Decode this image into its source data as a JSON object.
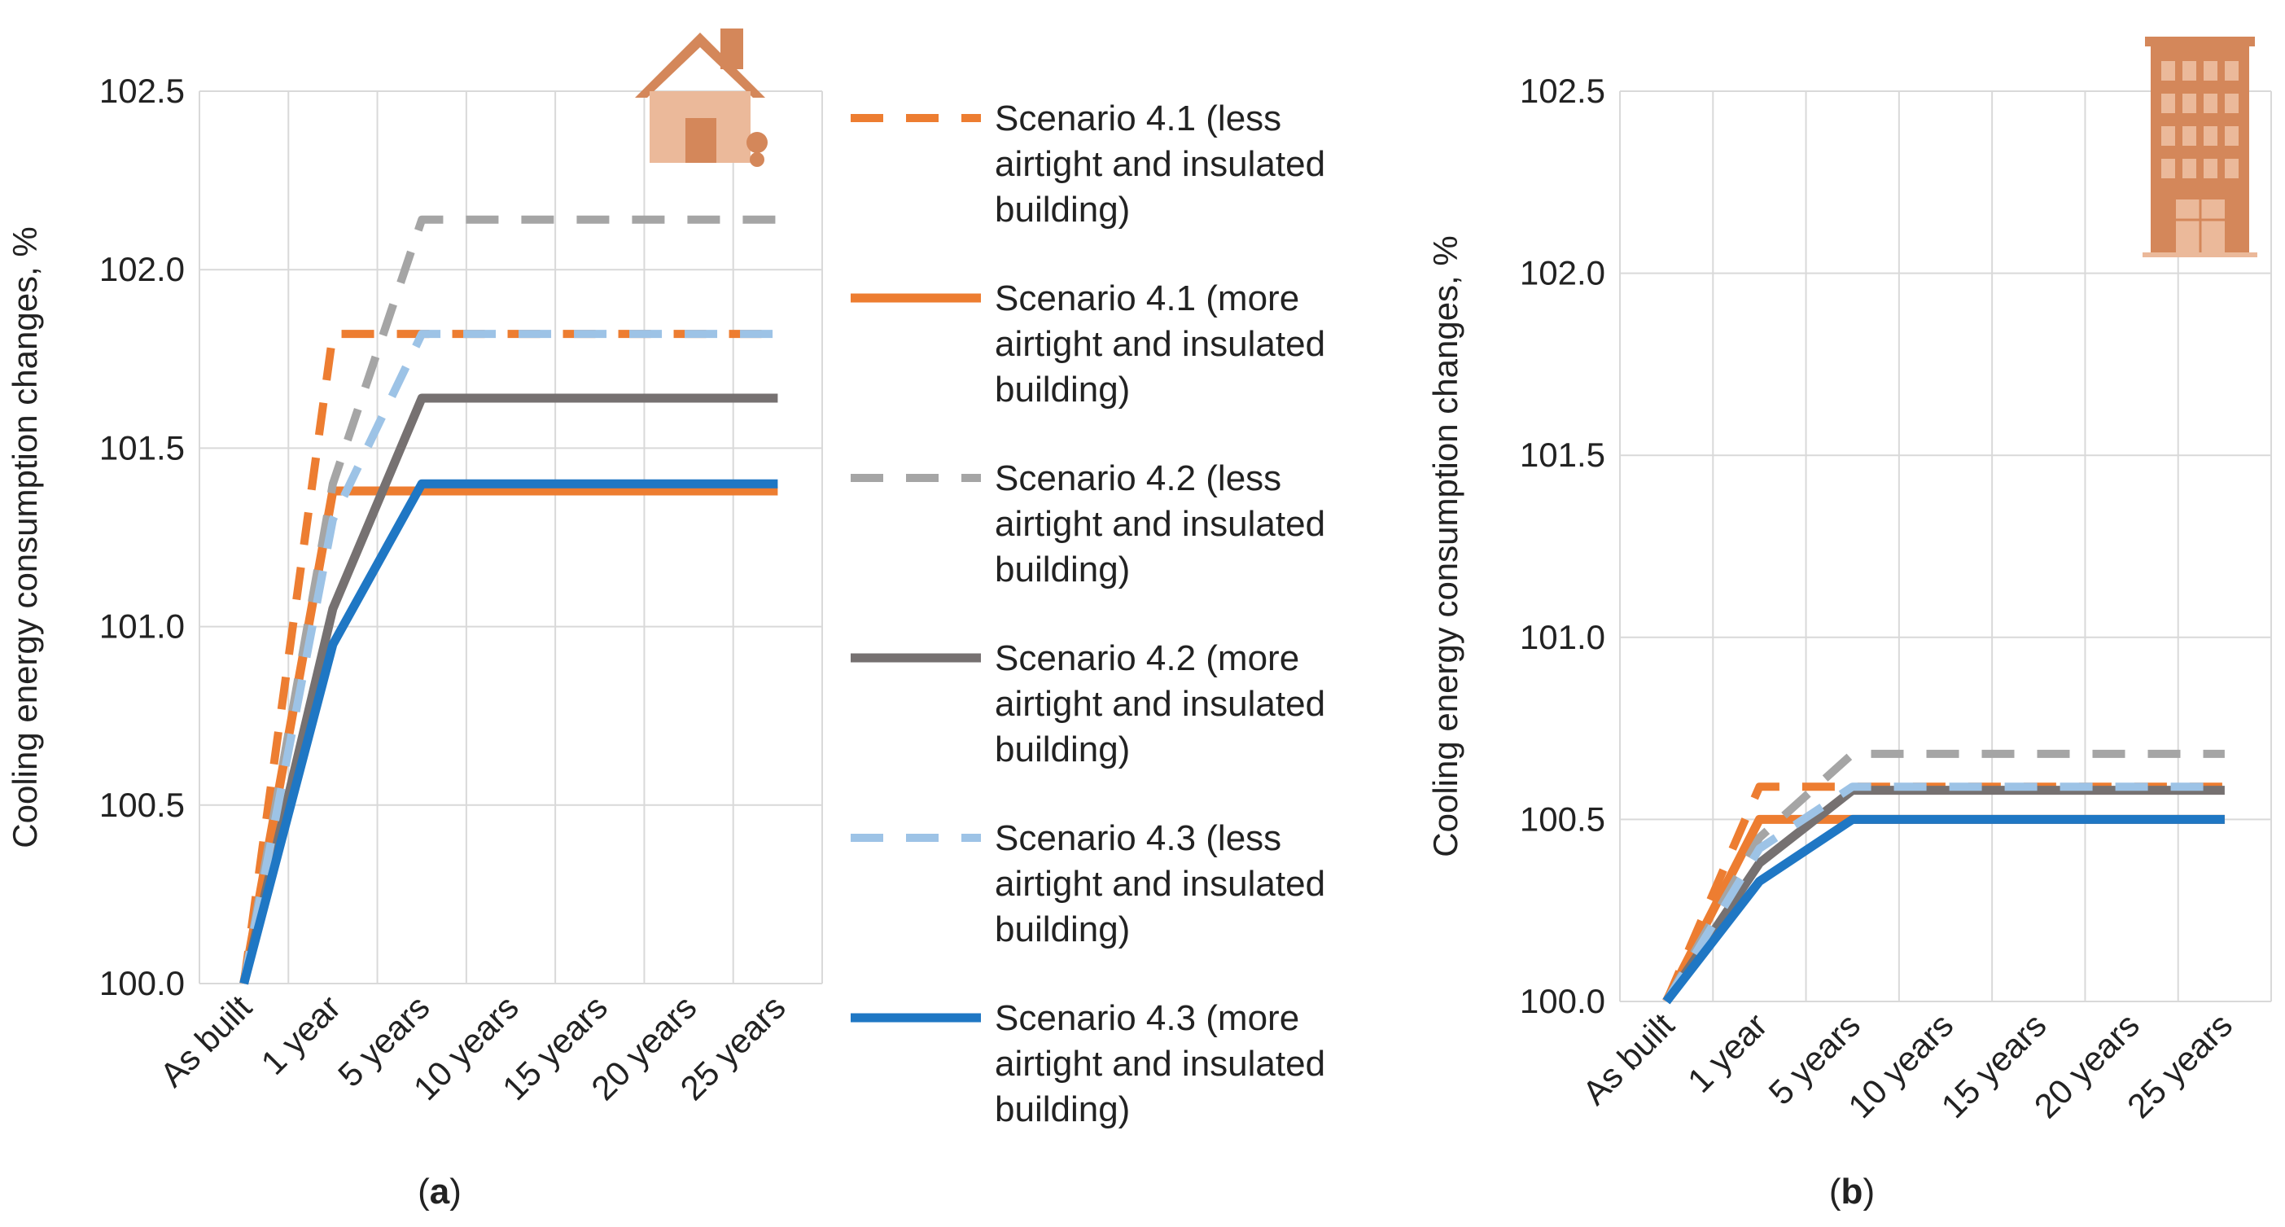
{
  "colors": {
    "orange": "#ED7D31",
    "gray_light": "#A5A5A5",
    "gray_dark": "#767171",
    "blue_light": "#9DC3E6",
    "blue": "#1F77C4",
    "grid": "#D9D9D9",
    "icon": "#D4875A"
  },
  "chart_data": [
    {
      "type": "line",
      "panel": "(a)",
      "caption_label": "a",
      "icon": "house-icon",
      "xlabel": "",
      "ylabel": "Cooling energy consumption changes, %",
      "ylim": [
        100.0,
        102.5
      ],
      "yticks": [
        "100.0",
        "100.5",
        "101.0",
        "101.5",
        "102.0",
        "102.5"
      ],
      "categories": [
        "As built",
        "1 year",
        "5 years",
        "10 years",
        "15 years",
        "20 years",
        "25 years"
      ],
      "series": [
        {
          "name": "Scenario 4.1 (less airtight and insulated building)",
          "style": "dashed",
          "color": "#ED7D31",
          "values": [
            100.0,
            101.82,
            101.82,
            101.82,
            101.82,
            101.82,
            101.82
          ]
        },
        {
          "name": "Scenario 4.1 (more airtight and insulated building)",
          "style": "solid",
          "color": "#ED7D31",
          "values": [
            100.0,
            101.38,
            101.38,
            101.38,
            101.38,
            101.38,
            101.38
          ]
        },
        {
          "name": "Scenario 4.2 (less airtight and insulated building)",
          "style": "dashed",
          "color": "#A5A5A5",
          "values": [
            100.0,
            101.4,
            102.14,
            102.14,
            102.14,
            102.14,
            102.14
          ]
        },
        {
          "name": "Scenario 4.2 (more airtight and insulated building)",
          "style": "solid",
          "color": "#767171",
          "values": [
            100.0,
            101.05,
            101.64,
            101.64,
            101.64,
            101.64,
            101.64
          ]
        },
        {
          "name": "Scenario 4.3 (less airtight and insulated building)",
          "style": "dashed",
          "color": "#9DC3E6",
          "values": [
            100.0,
            101.3,
            101.82,
            101.82,
            101.82,
            101.82,
            101.82
          ]
        },
        {
          "name": "Scenario 4.3 (more airtight and insulated building)",
          "style": "solid",
          "color": "#1F77C4",
          "values": [
            100.0,
            100.95,
            101.4,
            101.4,
            101.4,
            101.4,
            101.4
          ]
        }
      ]
    },
    {
      "type": "line",
      "panel": "(b)",
      "caption_label": "b",
      "icon": "apartment-building-icon",
      "xlabel": "",
      "ylabel": "Cooling energy consumption changes, %",
      "ylim": [
        100.0,
        102.5
      ],
      "yticks": [
        "100.0",
        "100.5",
        "101.0",
        "101.5",
        "102.0",
        "102.5"
      ],
      "categories": [
        "As built",
        "1 year",
        "5 years",
        "10 years",
        "15 years",
        "20 years",
        "25 years"
      ],
      "series": [
        {
          "name": "Scenario 4.1 (less airtight and insulated building)",
          "style": "dashed",
          "color": "#ED7D31",
          "values": [
            100.0,
            100.59,
            100.59,
            100.59,
            100.59,
            100.59,
            100.59
          ]
        },
        {
          "name": "Scenario 4.1 (more airtight and insulated building)",
          "style": "solid",
          "color": "#ED7D31",
          "values": [
            100.0,
            100.5,
            100.5,
            100.5,
            100.5,
            100.5,
            100.5
          ]
        },
        {
          "name": "Scenario 4.2 (less airtight and insulated building)",
          "style": "dashed",
          "color": "#A5A5A5",
          "values": [
            100.0,
            100.45,
            100.68,
            100.68,
            100.68,
            100.68,
            100.68
          ]
        },
        {
          "name": "Scenario 4.2 (more airtight and insulated building)",
          "style": "solid",
          "color": "#767171",
          "values": [
            100.0,
            100.38,
            100.58,
            100.58,
            100.58,
            100.58,
            100.58
          ]
        },
        {
          "name": "Scenario 4.3 (less airtight and insulated building)",
          "style": "dashed",
          "color": "#9DC3E6",
          "values": [
            100.0,
            100.42,
            100.59,
            100.59,
            100.59,
            100.59,
            100.59
          ]
        },
        {
          "name": "Scenario 4.3 (more airtight and insulated building)",
          "style": "solid",
          "color": "#1F77C4",
          "values": [
            100.0,
            100.33,
            100.5,
            100.5,
            100.5,
            100.5,
            100.5
          ]
        }
      ]
    }
  ],
  "legend": {
    "placement": "between panels",
    "items": [
      {
        "lines": [
          "Scenario 4.1 (less",
          "airtight and insulated",
          "building)"
        ],
        "style": "dashed",
        "color": "#ED7D31"
      },
      {
        "lines": [
          "Scenario 4.1 (more",
          "airtight and insulated",
          "building)"
        ],
        "style": "solid",
        "color": "#ED7D31"
      },
      {
        "lines": [
          "Scenario 4.2 (less",
          "airtight and insulated",
          "building)"
        ],
        "style": "dashed",
        "color": "#A5A5A5"
      },
      {
        "lines": [
          "Scenario 4.2 (more",
          "airtight and insulated",
          "building)"
        ],
        "style": "solid",
        "color": "#767171"
      },
      {
        "lines": [
          "Scenario 4.3 (less",
          "airtight and insulated",
          "building)"
        ],
        "style": "dashed",
        "color": "#9DC3E6"
      },
      {
        "lines": [
          "Scenario 4.3 (more",
          "airtight and insulated",
          "building)"
        ],
        "style": "solid",
        "color": "#1F77C4"
      }
    ]
  }
}
